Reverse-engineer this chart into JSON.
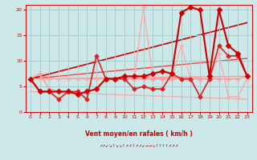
{
  "xlabel": "Vent moyen/en rafales ( km/h )",
  "xlim": [
    -0.5,
    23.5
  ],
  "ylim": [
    0,
    21
  ],
  "yticks": [
    0,
    5,
    10,
    15,
    20
  ],
  "xticks": [
    0,
    1,
    2,
    3,
    4,
    5,
    6,
    7,
    8,
    9,
    10,
    11,
    12,
    13,
    14,
    15,
    16,
    17,
    18,
    19,
    20,
    21,
    22,
    23
  ],
  "bg_color": "#cce8e8",
  "grid_color": "#aacccc",
  "series": [
    {
      "name": "light_pink_flat",
      "x": [
        0,
        1,
        2,
        3,
        4,
        5,
        6,
        7,
        8,
        9,
        10,
        11,
        12,
        13,
        14,
        15,
        16,
        17,
        18,
        19,
        20,
        21,
        22,
        23
      ],
      "y": [
        6.5,
        7.5,
        4.5,
        4.0,
        4.0,
        3.5,
        4.0,
        4.5,
        6.5,
        6.5,
        6.5,
        6.5,
        6.5,
        6.5,
        6.5,
        6.5,
        6.5,
        6.5,
        6.5,
        6.5,
        6.5,
        6.5,
        6.5,
        7.0
      ],
      "color": "#ff9999",
      "lw": 1.0,
      "marker": "+",
      "ms": 4,
      "zorder": 3
    },
    {
      "name": "medium_pink_moderate",
      "x": [
        0,
        1,
        2,
        3,
        4,
        5,
        6,
        7,
        8,
        9,
        10,
        11,
        12,
        13,
        14,
        15,
        16,
        17,
        18,
        19,
        20,
        21,
        22,
        23
      ],
      "y": [
        6.5,
        4.0,
        4.0,
        2.5,
        4.0,
        4.0,
        2.5,
        11.0,
        6.5,
        6.5,
        6.5,
        4.5,
        5.0,
        4.5,
        4.5,
        7.5,
        6.5,
        6.5,
        3.0,
        6.5,
        13.0,
        11.0,
        11.0,
        7.0
      ],
      "color": "#dd2222",
      "lw": 1.2,
      "marker": "D",
      "ms": 2.5,
      "zorder": 4
    },
    {
      "name": "light_pink_spike",
      "x": [
        0,
        1,
        2,
        3,
        4,
        5,
        6,
        7,
        8,
        9,
        10,
        11,
        12,
        13,
        14,
        15,
        16,
        17,
        18,
        19,
        20,
        21,
        22,
        23
      ],
      "y": [
        6.5,
        6.5,
        6.5,
        6.5,
        6.5,
        6.5,
        6.5,
        6.5,
        6.5,
        6.5,
        6.5,
        6.5,
        20.5,
        6.5,
        6.5,
        6.5,
        13.0,
        6.5,
        6.5,
        6.5,
        11.5,
        3.0,
        3.0,
        6.5
      ],
      "color": "#ffaaaa",
      "lw": 1.0,
      "marker": "+",
      "ms": 4,
      "zorder": 2
    },
    {
      "name": "dark_red_main",
      "x": [
        0,
        1,
        2,
        3,
        4,
        5,
        6,
        7,
        8,
        9,
        10,
        11,
        12,
        13,
        14,
        15,
        16,
        17,
        18,
        19,
        20,
        21,
        22,
        23
      ],
      "y": [
        6.5,
        4.0,
        4.0,
        4.0,
        4.0,
        3.5,
        4.0,
        4.5,
        6.5,
        6.5,
        7.0,
        7.0,
        7.0,
        7.5,
        8.0,
        7.5,
        19.5,
        20.5,
        20.0,
        7.0,
        20.0,
        13.0,
        11.5,
        7.0
      ],
      "color": "#cc0000",
      "lw": 1.5,
      "marker": "D",
      "ms": 3,
      "zorder": 5
    },
    {
      "name": "trend_light",
      "x": [
        0,
        23
      ],
      "y": [
        6.5,
        7.0
      ],
      "color": "#ff9999",
      "lw": 1.0,
      "marker": null,
      "ms": 0,
      "zorder": 1
    },
    {
      "name": "trend_medium",
      "x": [
        0,
        23
      ],
      "y": [
        6.5,
        10.5
      ],
      "color": "#ee4444",
      "lw": 1.0,
      "marker": null,
      "ms": 0,
      "zorder": 1
    },
    {
      "name": "trend_dark",
      "x": [
        0,
        23
      ],
      "y": [
        6.5,
        17.5
      ],
      "color": "#cc0000",
      "lw": 1.2,
      "marker": null,
      "ms": 0,
      "zorder": 1
    },
    {
      "name": "trend_flat_pink",
      "x": [
        0,
        23
      ],
      "y": [
        4.0,
        2.5
      ],
      "color": "#ffaaaa",
      "lw": 1.0,
      "marker": null,
      "ms": 0,
      "zorder": 1
    }
  ],
  "arrows": "↗↗↙↘↑↘↘↑↗↗↑↗↗↙→→↘↑↑↑↑↗↗↗"
}
